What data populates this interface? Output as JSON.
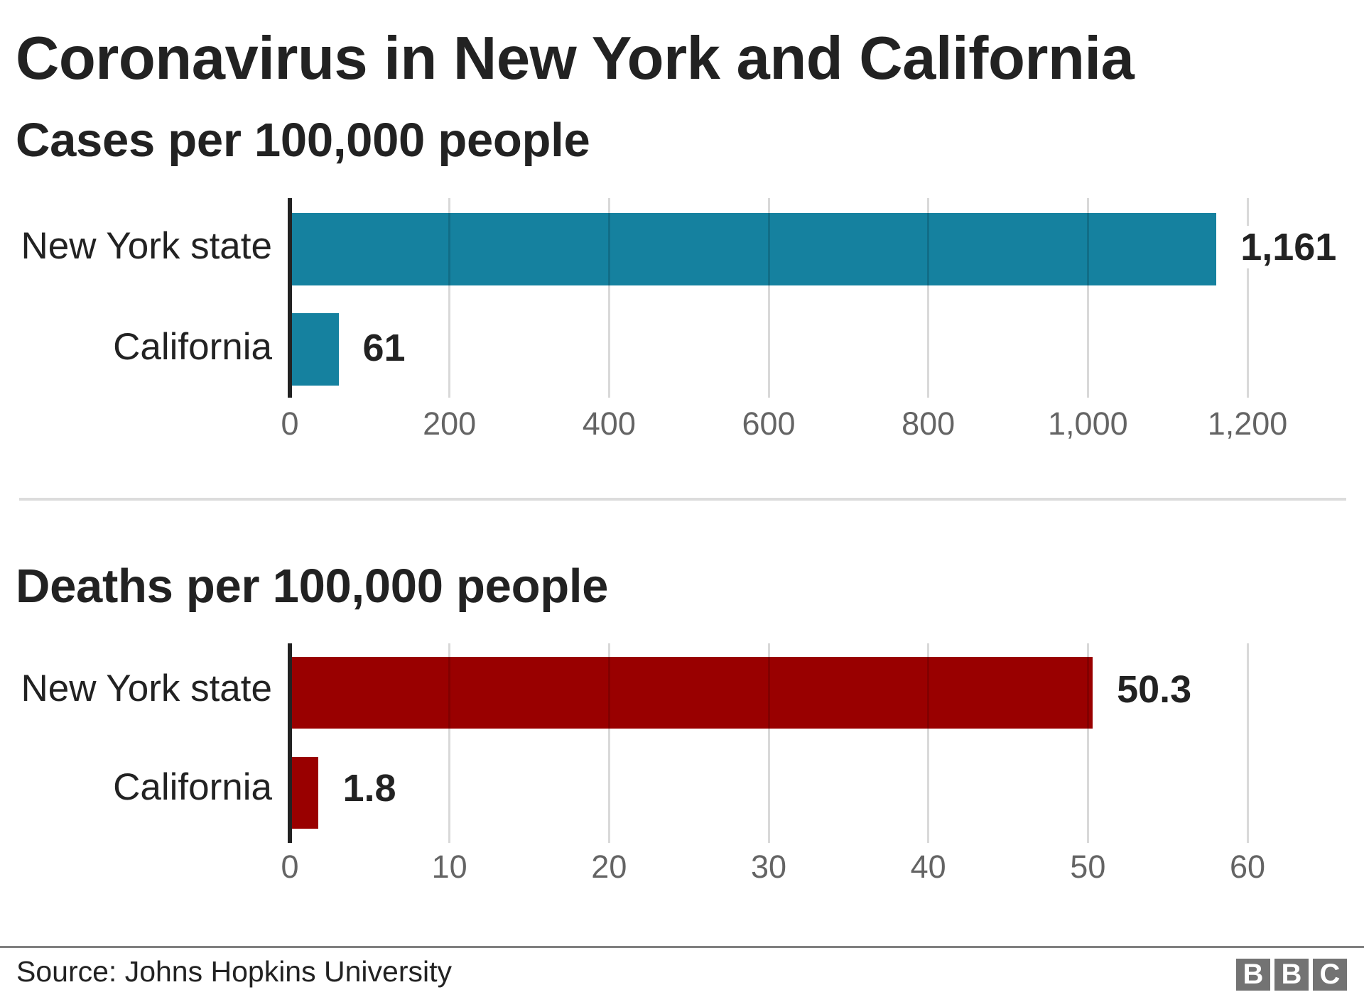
{
  "header": {
    "title": "Coronavirus in New York and California"
  },
  "footer": {
    "source": "Source: Johns Hopkins University",
    "logo_letters": [
      "B",
      "B",
      "C"
    ]
  },
  "colors": {
    "cases_bar": "#15819f",
    "deaths_bar": "#990000",
    "axis": "#222222",
    "gridline": "#d9d9d9",
    "tick_label": "#646464",
    "logo": "#737373"
  },
  "chart_data": [
    {
      "type": "bar",
      "orientation": "horizontal",
      "title": "Cases per 100,000 people",
      "categories": [
        "New York state",
        "California"
      ],
      "values": [
        1161,
        61
      ],
      "value_labels": [
        "1,161",
        "61"
      ],
      "color": "#15819f",
      "xlabel": "",
      "ylabel": "",
      "xlim": [
        0,
        1200
      ],
      "ticks": [
        0,
        200,
        400,
        600,
        800,
        1000,
        1200
      ],
      "tick_labels": [
        "0",
        "200",
        "400",
        "600",
        "800",
        "1,000",
        "1,200"
      ],
      "grid": true,
      "legend": "none"
    },
    {
      "type": "bar",
      "orientation": "horizontal",
      "title": "Deaths per 100,000 people",
      "categories": [
        "New York state",
        "California"
      ],
      "values": [
        50.3,
        1.8
      ],
      "value_labels": [
        "50.3",
        "1.8"
      ],
      "color": "#990000",
      "xlabel": "",
      "ylabel": "",
      "xlim": [
        0,
        60
      ],
      "ticks": [
        0,
        10,
        20,
        30,
        40,
        50,
        60
      ],
      "tick_labels": [
        "0",
        "10",
        "20",
        "30",
        "40",
        "50",
        "60"
      ],
      "grid": true,
      "legend": "none"
    }
  ]
}
